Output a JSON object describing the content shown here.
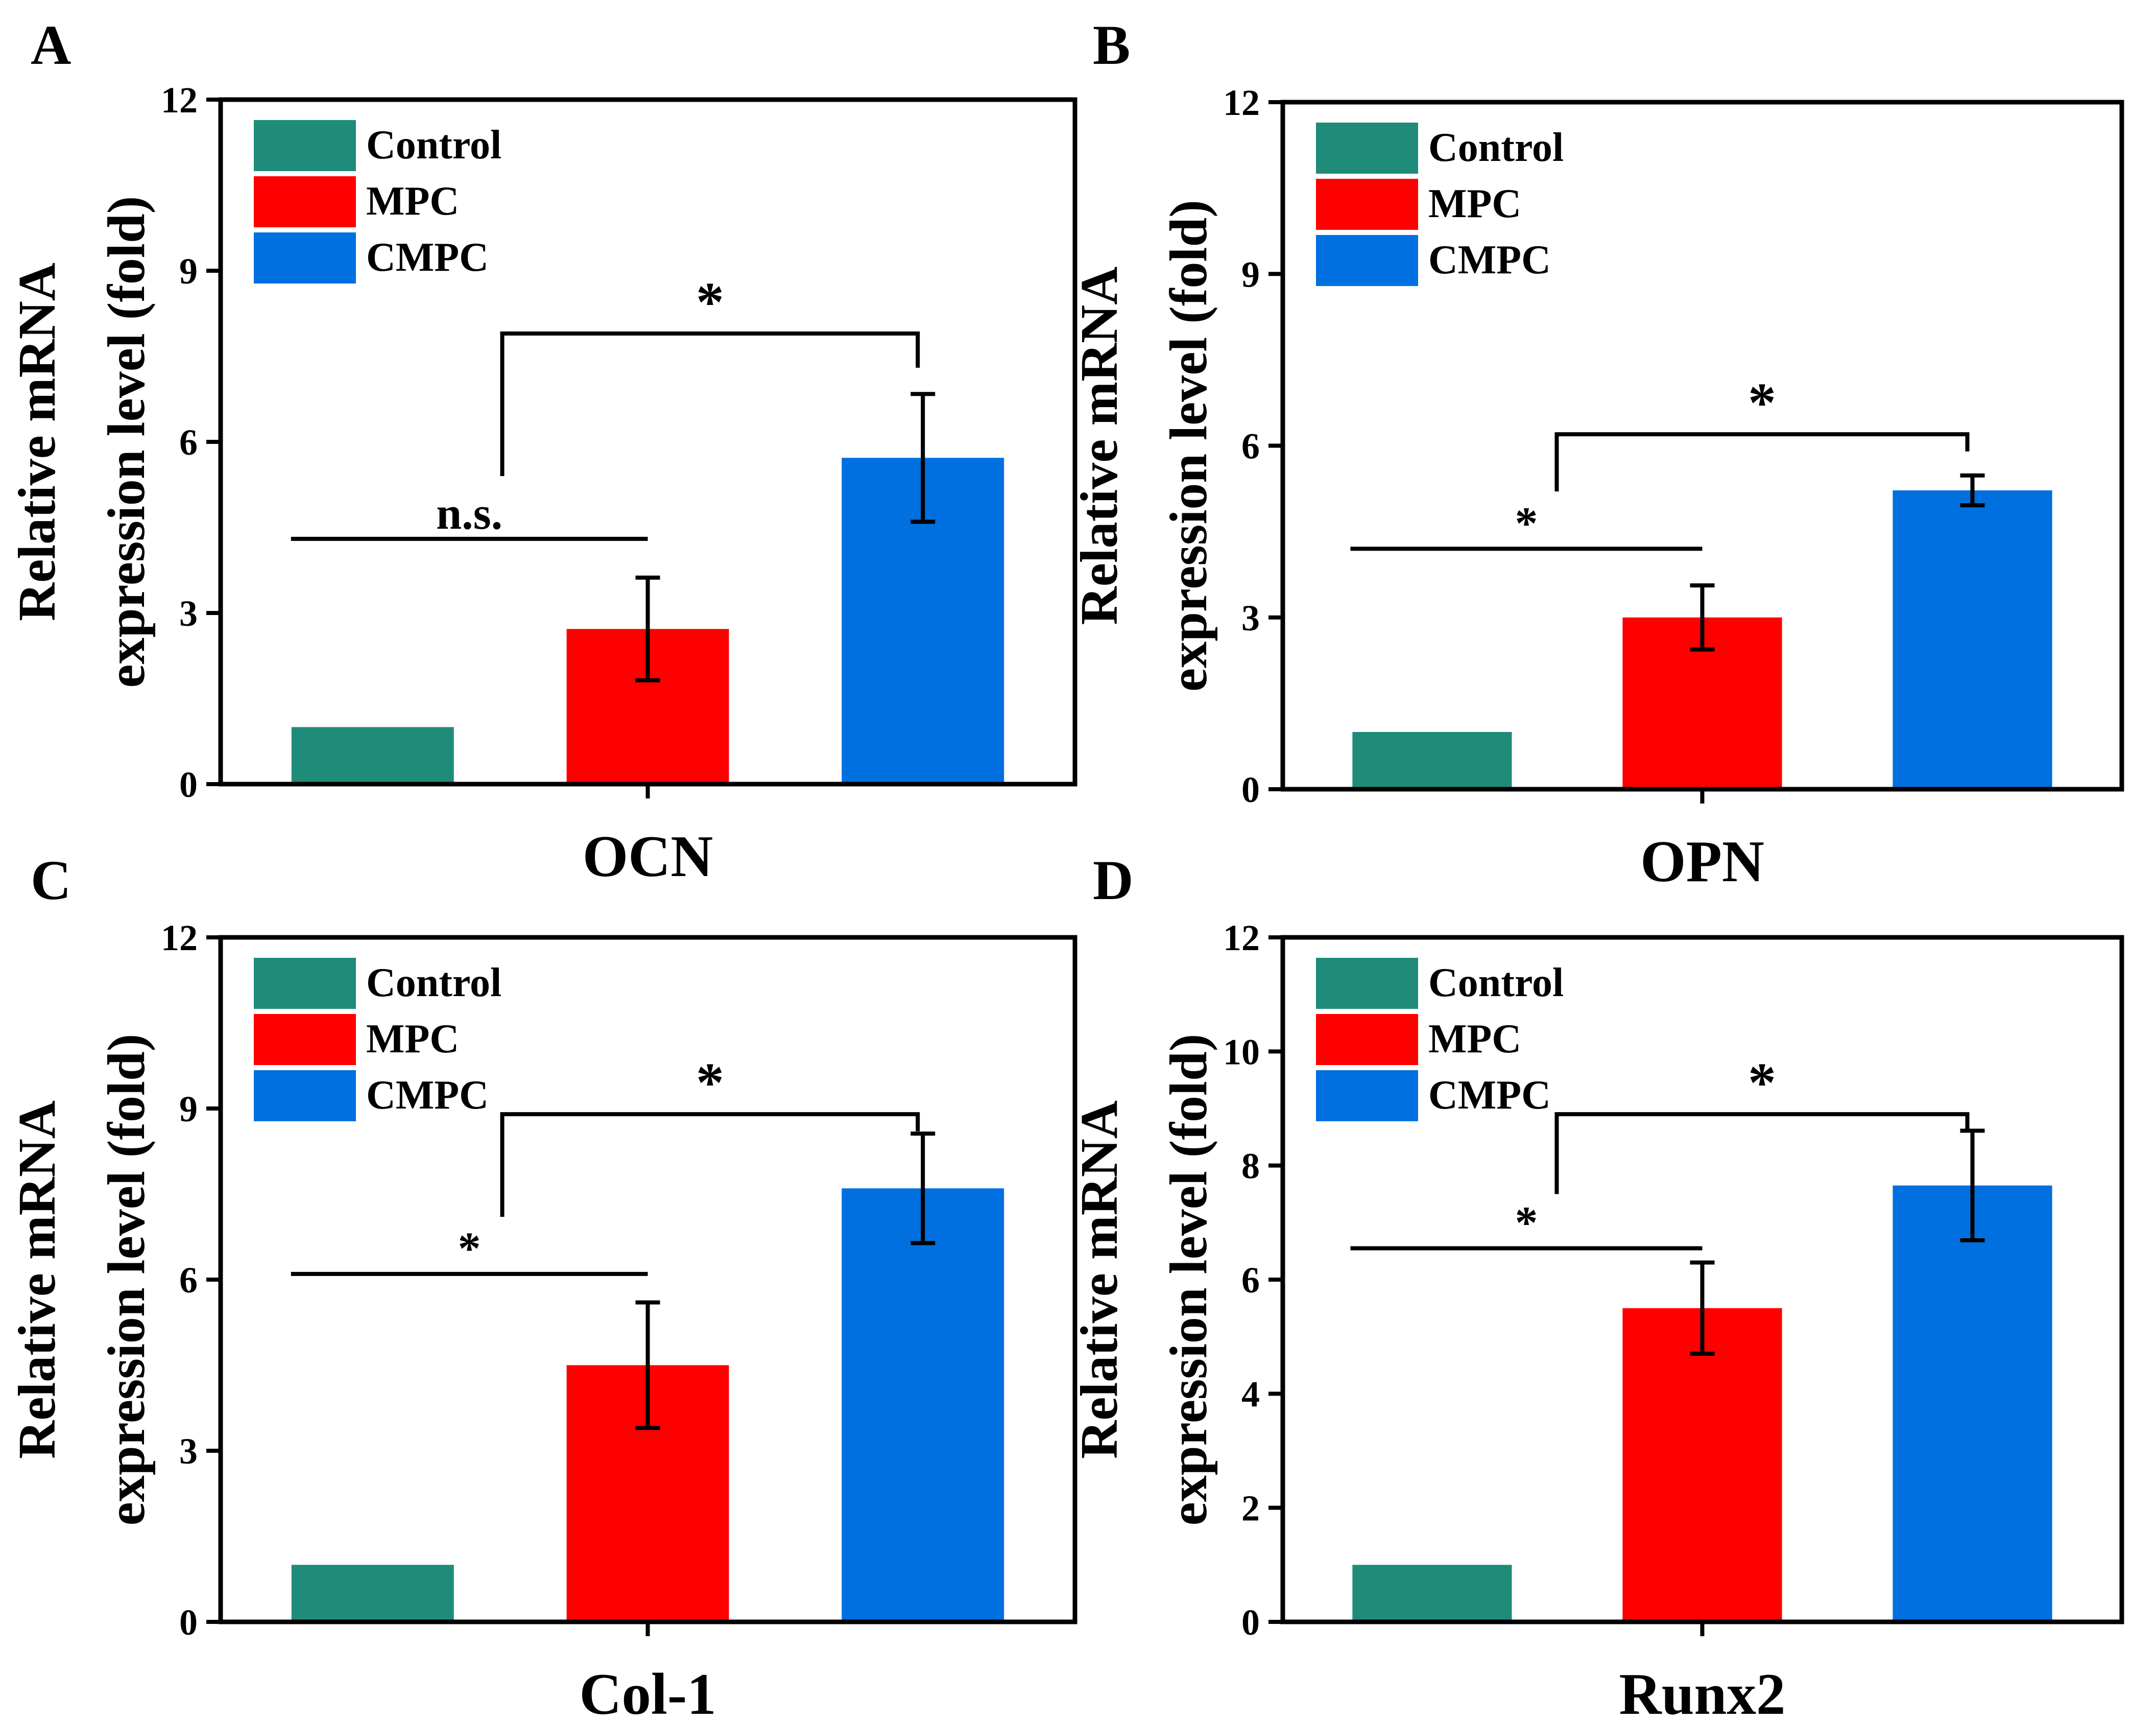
{
  "colors": {
    "Control": "#1e8c78",
    "MPC": "#ff0000",
    "CMPC": "#0070e0"
  },
  "chart_data": [
    {
      "panel": "A",
      "type": "bar",
      "xlabel": "OCN",
      "ylabel_line1": "Relative mRNA",
      "ylabel_line2": "expression level (fold)",
      "categories": [
        "Control",
        "MPC",
        "CMPC"
      ],
      "values": [
        1.0,
        2.72,
        5.72
      ],
      "errors": [
        0,
        0.9,
        1.12
      ],
      "ylim": [
        0,
        12
      ],
      "yticks": [
        "0",
        "3",
        "6",
        "9",
        "12"
      ],
      "legend": [
        "Control",
        "MPC",
        "CMPC"
      ],
      "legend_position": "top-left",
      "annotations": [
        {
          "type": "line",
          "from": 0,
          "to": 1,
          "label": "n.s.",
          "y": 4.3
        },
        {
          "type": "bracket",
          "from": 1,
          "to": 2,
          "label": "*",
          "y": 7.9,
          "drop_from": 5.4,
          "drop_to": 7.3
        }
      ]
    },
    {
      "panel": "B",
      "type": "bar",
      "xlabel": "OPN",
      "ylabel_line1": "Relative mRNA",
      "ylabel_line2": "expression level (fold)",
      "categories": [
        "Control",
        "MPC",
        "CMPC"
      ],
      "values": [
        1.0,
        3.0,
        5.22
      ],
      "errors": [
        0,
        0.56,
        0.26
      ],
      "ylim": [
        0,
        12
      ],
      "yticks": [
        "0",
        "3",
        "6",
        "9",
        "12"
      ],
      "legend": [
        "Control",
        "MPC",
        "CMPC"
      ],
      "legend_position": "top-left",
      "annotations": [
        {
          "type": "line",
          "from": 0,
          "to": 1,
          "label": "*",
          "y": 4.2
        },
        {
          "type": "bracket",
          "from": 1,
          "to": 2,
          "label": "*",
          "y": 6.2,
          "drop_from": 5.2,
          "drop_to": 5.9
        }
      ]
    },
    {
      "panel": "C",
      "type": "bar",
      "xlabel": "Col-1",
      "ylabel_line1": "Relative mRNA",
      "ylabel_line2": "expression level (fold)",
      "categories": [
        "Control",
        "MPC",
        "CMPC"
      ],
      "values": [
        1.0,
        4.5,
        7.6
      ],
      "errors": [
        0,
        1.1,
        0.96
      ],
      "ylim": [
        0,
        12
      ],
      "yticks": [
        "0",
        "3",
        "6",
        "9",
        "12"
      ],
      "legend": [
        "Control",
        "MPC",
        "CMPC"
      ],
      "legend_position": "top-left",
      "annotations": [
        {
          "type": "line",
          "from": 0,
          "to": 1,
          "label": "*",
          "y": 6.1
        },
        {
          "type": "bracket",
          "from": 1,
          "to": 2,
          "label": "*",
          "y": 8.9,
          "drop_from": 7.1,
          "drop_to": 8.6
        }
      ]
    },
    {
      "panel": "D",
      "type": "bar",
      "xlabel": "Runx2",
      "ylabel_line1": "Relative mRNA",
      "ylabel_line2": "expression level (fold)",
      "categories": [
        "Control",
        "MPC",
        "CMPC"
      ],
      "values": [
        1.0,
        5.5,
        7.65
      ],
      "errors": [
        0,
        0.8,
        0.96
      ],
      "ylim": [
        0,
        12
      ],
      "yticks": [
        "0",
        "2",
        "4",
        "6",
        "8",
        "10",
        "12"
      ],
      "legend": [
        "Control",
        "MPC",
        "CMPC"
      ],
      "legend_position": "top-left",
      "annotations": [
        {
          "type": "line",
          "from": 0,
          "to": 1,
          "label": "*",
          "y": 6.55
        },
        {
          "type": "bracket",
          "from": 1,
          "to": 2,
          "label": "*",
          "y": 8.9,
          "drop_from": 7.5,
          "drop_to": 8.6
        }
      ]
    }
  ]
}
